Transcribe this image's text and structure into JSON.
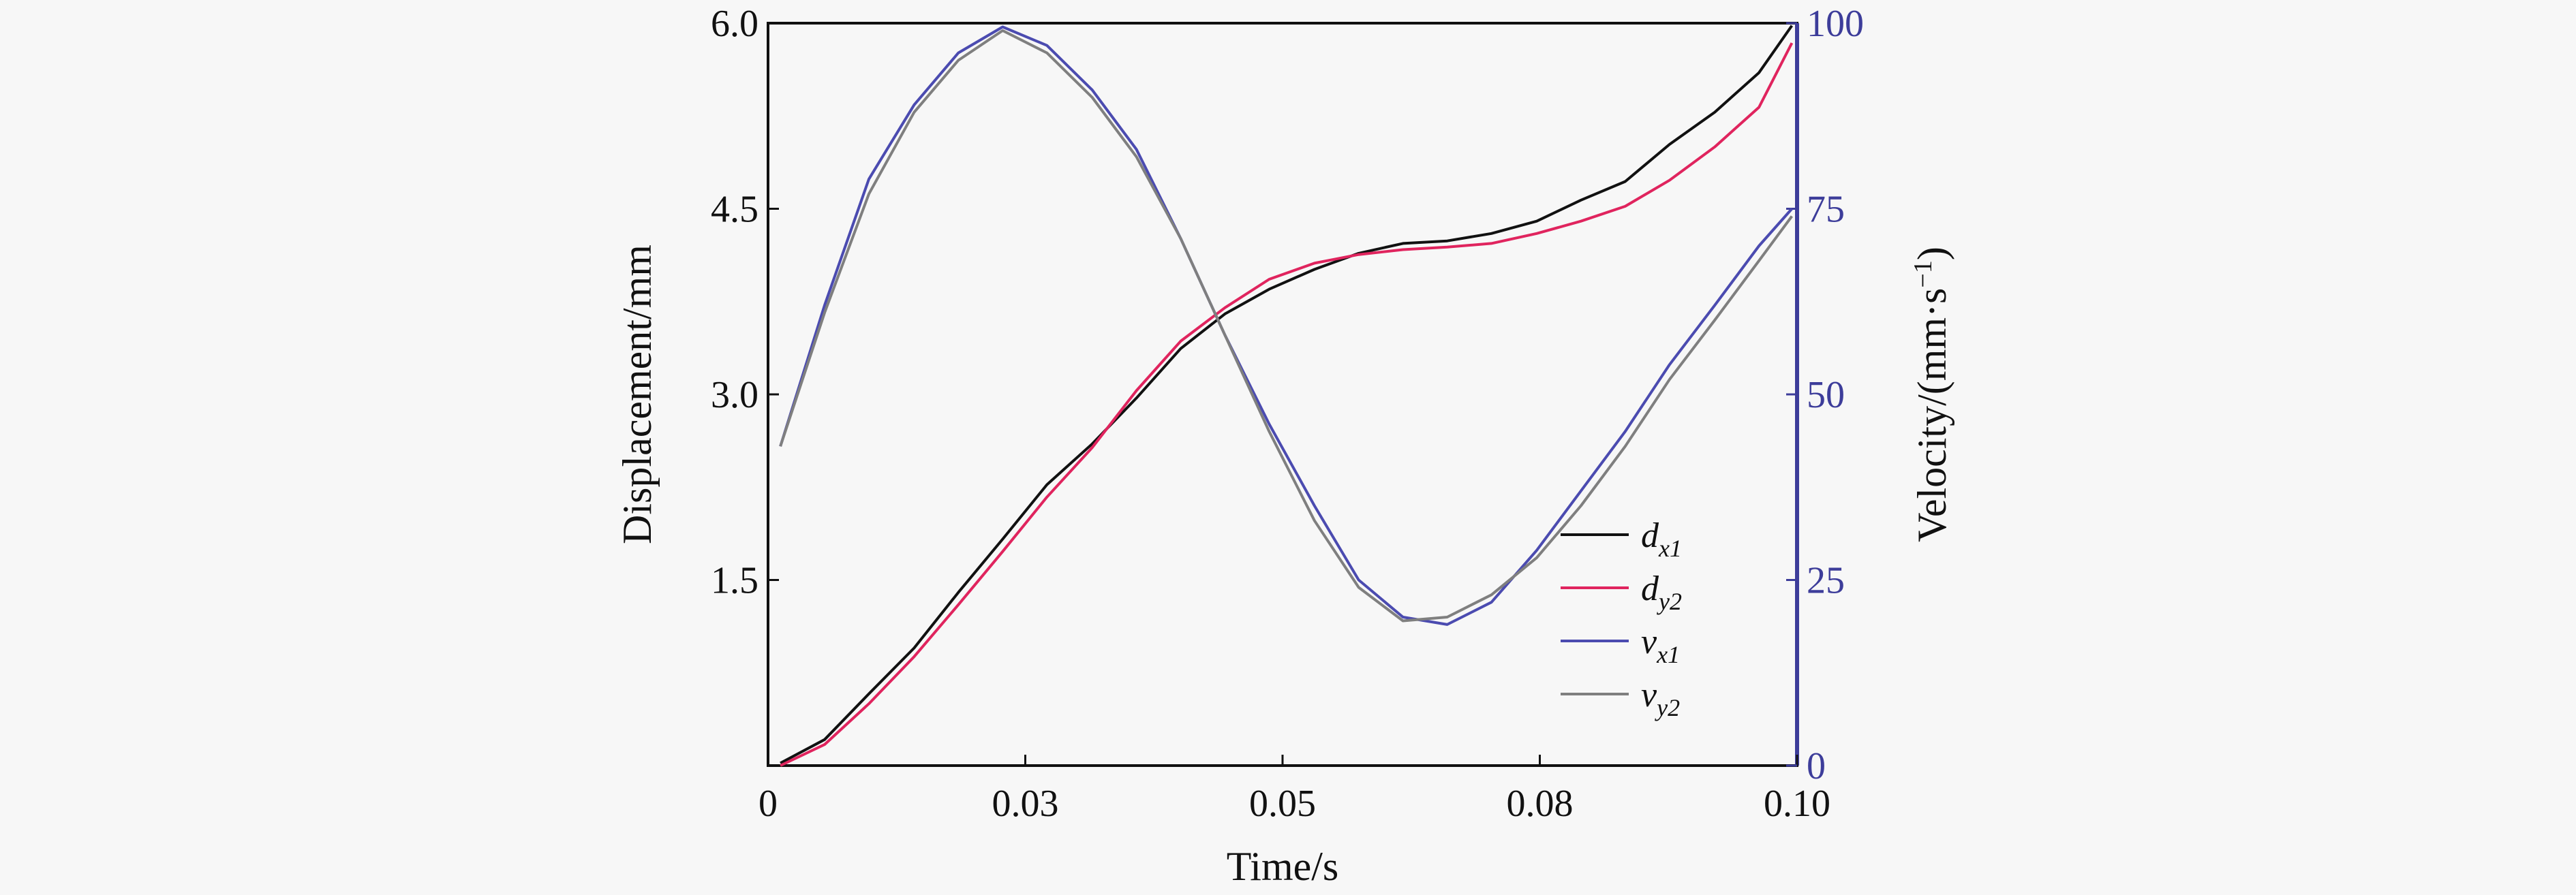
{
  "chart_data": {
    "type": "line",
    "xlabel": "Time/s",
    "ylabel_left": "Displacement/mm",
    "ylabel_right": "Velocity/(mm·s",
    "ylabel_right_sup": "−1",
    "ylabel_right_close": ")",
    "xlim": [
      0.0,
      0.1
    ],
    "x_ticks": [
      0.0,
      0.025,
      0.05,
      0.075,
      0.1
    ],
    "x_tick_labels": [
      "0",
      "0.03",
      "0.05",
      "0.08",
      "0.10"
    ],
    "ylim_left": [
      0,
      6.0
    ],
    "y_left_ticks": [
      0,
      1.5,
      3.0,
      4.5,
      6.0
    ],
    "y_left_tick_labels": [
      "",
      "1.5",
      "3.0",
      "4.5",
      "6.0"
    ],
    "ylim_right": [
      0,
      100
    ],
    "y_right_ticks": [
      0,
      25,
      50,
      75,
      100
    ],
    "y_right_tick_labels": [
      "0",
      "25",
      "50",
      "75",
      "100"
    ],
    "right_axis_color": "#3d3d9a",
    "x": [
      0.0012,
      0.0055,
      0.0098,
      0.0142,
      0.0185,
      0.0228,
      0.0271,
      0.0315,
      0.0358,
      0.0401,
      0.0444,
      0.0487,
      0.0531,
      0.0574,
      0.0617,
      0.066,
      0.0703,
      0.0747,
      0.079,
      0.0833,
      0.0876,
      0.092,
      0.0963,
      0.0995
    ],
    "series": [
      {
        "name": "d",
        "sub": "x1",
        "axis": "left",
        "color": "#111111",
        "values": [
          0.02,
          0.21,
          0.58,
          0.95,
          1.4,
          1.83,
          2.27,
          2.6,
          2.97,
          3.37,
          3.65,
          3.85,
          4.01,
          4.14,
          4.22,
          4.24,
          4.3,
          4.4,
          4.57,
          4.72,
          5.02,
          5.28,
          5.6,
          5.98
        ]
      },
      {
        "name": "d",
        "sub": "y2",
        "axis": "left",
        "color": "#e0245e",
        "values": [
          0.0,
          0.17,
          0.5,
          0.88,
          1.3,
          1.73,
          2.17,
          2.57,
          3.03,
          3.43,
          3.7,
          3.93,
          4.06,
          4.13,
          4.17,
          4.19,
          4.22,
          4.3,
          4.4,
          4.52,
          4.73,
          5.0,
          5.32,
          5.84
        ]
      },
      {
        "name": "v",
        "sub": "x1",
        "axis": "right",
        "color": "#4b4bb0",
        "values": [
          43,
          62,
          79,
          89,
          96,
          99.5,
          97,
          91,
          83,
          71,
          58,
          46,
          35,
          25,
          20,
          19,
          22,
          29,
          37,
          45,
          54,
          62,
          70,
          75
        ]
      },
      {
        "name": "v",
        "sub": "y2",
        "axis": "right",
        "color": "#7f7f7f",
        "values": [
          43,
          61,
          77,
          88,
          95,
          99,
          96,
          90,
          82,
          71,
          58,
          45,
          33,
          24,
          19.5,
          20,
          23,
          28,
          35,
          43,
          52,
          60,
          68,
          74
        ]
      }
    ],
    "legend_position": "bottom-right-inside",
    "grid": false
  }
}
